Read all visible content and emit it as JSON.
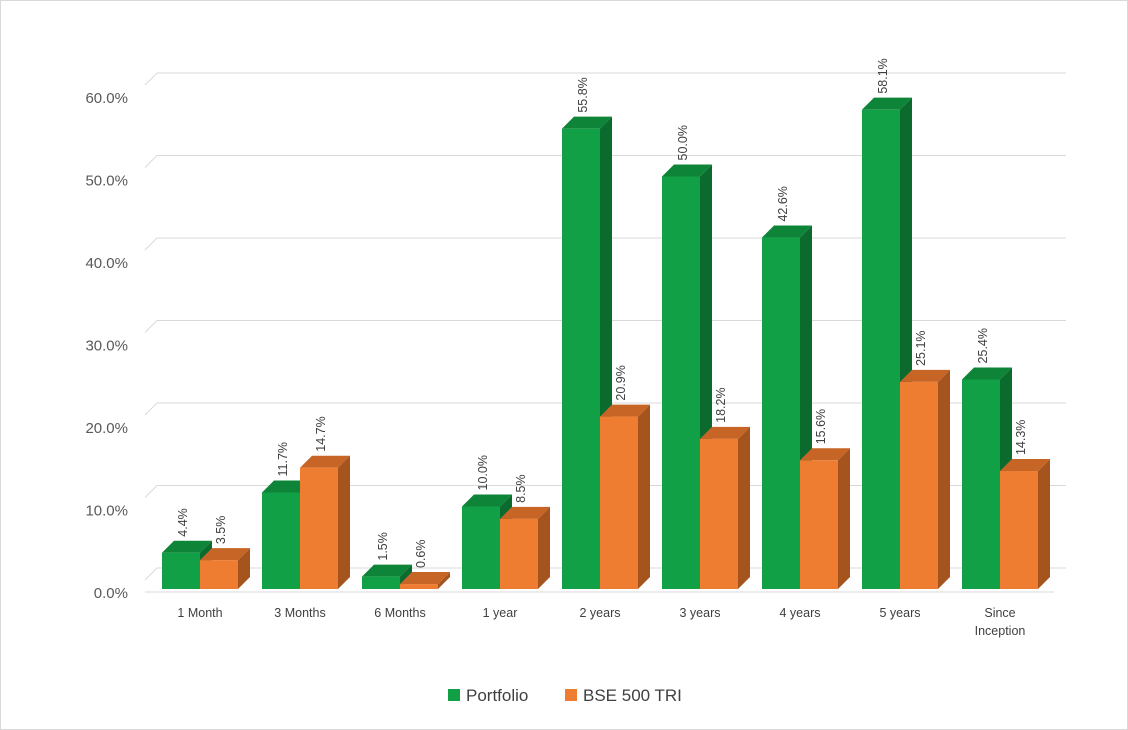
{
  "chart_data": {
    "type": "bar",
    "style": "3d-clustered-column",
    "categories": [
      "1 Month",
      "3 Months",
      "6 Months",
      "1 year",
      "2 years",
      "3 years",
      "4 years",
      "5 years",
      "Since Inception"
    ],
    "series": [
      {
        "name": "Portfolio",
        "values": [
          4.4,
          11.7,
          1.5,
          10.0,
          55.8,
          50.0,
          42.6,
          58.1,
          25.4
        ]
      },
      {
        "name": "BSE 500 TRI",
        "values": [
          3.5,
          14.7,
          0.6,
          8.5,
          20.9,
          18.2,
          15.6,
          25.1,
          14.3
        ]
      }
    ],
    "colors": {
      "Portfolio": {
        "front": "#12a047",
        "side": "#0b6b2e",
        "top": "#0e8439"
      },
      "BSE 500 TRI": {
        "front": "#ee7d31",
        "side": "#a6541d",
        "top": "#c76526"
      }
    },
    "y_ticks": [
      "0.0%",
      "10.0%",
      "20.0%",
      "30.0%",
      "40.0%",
      "50.0%",
      "60.0%"
    ],
    "data_labels": [
      [
        "4.4%",
        "11.7%",
        "1.5%",
        "10.0%",
        "55.8%",
        "50.0%",
        "42.6%",
        "58.1%",
        "25.4%"
      ],
      [
        "3.5%",
        "14.7%",
        "0.6%",
        "8.5%",
        "20.9%",
        "18.2%",
        "15.6%",
        "25.1%",
        "14.3%"
      ]
    ],
    "ylim": [
      0,
      60
    ],
    "y_unit": "%",
    "grid": true,
    "legend": "bottom",
    "title": "",
    "xlabel": "",
    "ylabel": ""
  }
}
